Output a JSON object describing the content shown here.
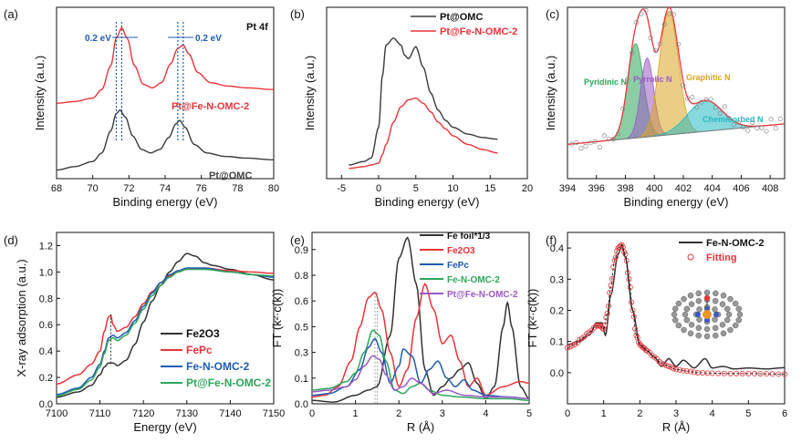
{
  "figure": {
    "panels": [
      {
        "panel_label": "(a)",
        "xlabel": "Binding energy (eV)",
        "ylabel": "Intensity (a.u.)",
        "annotation": "Pt 4f",
        "shift_left": "0.2 eV",
        "shift_right": "0.2 eV",
        "series_labels": [
          "Pt@Fe-N-OMC-2",
          "Pt@OMC"
        ]
      },
      {
        "panel_label": "(b)",
        "xlabel": "Binding energy (eV)",
        "ylabel": "Intensity (a.u.)",
        "legend": [
          "Pt@OMC",
          "Pt@Fe-N-OMC-2"
        ]
      },
      {
        "panel_label": "(c)",
        "xlabel": "Binding energy (eV)",
        "ylabel": "Intensity (a.u.)",
        "peak_labels": [
          "Pyridinic N",
          "Pyrrolic N",
          "Graphitic N",
          "Chemisorbed N"
        ]
      },
      {
        "panel_label": "(d)",
        "xlabel": "Energy (eV)",
        "ylabel": "X-ray adsorption (a.u.)",
        "legend": [
          "Fe2O3",
          "FePc",
          "Fe-N-OMC-2",
          "Pt@Fe-N-OMC-2"
        ]
      },
      {
        "panel_label": "(e)",
        "xlabel": "R (Å)",
        "ylabel": "FT (k²·c(k))",
        "legend": [
          "Fe foil*1/3",
          "Fe2O3",
          "FePc",
          "Fe-N-OMC-2",
          "Pt@Fe-N-OMC-2"
        ]
      },
      {
        "panel_label": "(f)",
        "xlabel": "R (Å)",
        "ylabel": "FT (k²·c(k))",
        "legend": [
          "Fe-N-OMC-2",
          "Fitting"
        ]
      }
    ]
  },
  "chart_data": [
    {
      "type": "line",
      "panel": "(a)",
      "xlabel": "Binding energy (eV)",
      "ylabel": "Intensity (a.u.)",
      "xlim": [
        68,
        80
      ],
      "xticks": [
        68,
        70,
        72,
        74,
        76,
        78,
        80
      ],
      "yticks": [],
      "series": [
        {
          "name": "Pt@Fe-N-OMC-2",
          "color": "#e8353a",
          "x": [
            68,
            69,
            70,
            70.5,
            71,
            71.3,
            71.6,
            71.9,
            72.3,
            72.8,
            73.3,
            73.8,
            74.3,
            74.7,
            75.0,
            75.3,
            75.8,
            76.5,
            77.5,
            78.5,
            80
          ],
          "y": [
            0.44,
            0.45,
            0.47,
            0.52,
            0.66,
            0.82,
            0.88,
            0.82,
            0.66,
            0.55,
            0.53,
            0.56,
            0.67,
            0.76,
            0.78,
            0.73,
            0.62,
            0.56,
            0.54,
            0.53,
            0.52
          ]
        },
        {
          "name": "Pt@OMC",
          "color": "#3a3a3a",
          "x": [
            68,
            69,
            70,
            70.5,
            71,
            71.3,
            71.5,
            71.8,
            72.2,
            72.7,
            73.2,
            73.7,
            74.2,
            74.6,
            74.8,
            75.1,
            75.6,
            76.3,
            77.3,
            78.5,
            80
          ],
          "y": [
            0.05,
            0.07,
            0.1,
            0.15,
            0.28,
            0.38,
            0.4,
            0.36,
            0.25,
            0.17,
            0.15,
            0.17,
            0.24,
            0.32,
            0.34,
            0.3,
            0.2,
            0.15,
            0.13,
            0.12,
            0.11
          ]
        }
      ]
    },
    {
      "type": "line",
      "panel": "(b)",
      "xlabel": "Binding energy (eV)",
      "ylabel": "Intensity (a.u.)",
      "xlim": [
        -7,
        20
      ],
      "xticks": [
        -5,
        0,
        5,
        10,
        15,
        20
      ],
      "yticks": [],
      "series": [
        {
          "name": "Pt@OMC",
          "color": "#3a3a3a",
          "x": [
            -4,
            -2,
            -1,
            0,
            0.5,
            1,
            2,
            3,
            3.5,
            4,
            5,
            6,
            7,
            8,
            9,
            10,
            12,
            14,
            16
          ],
          "y": [
            0.08,
            0.1,
            0.12,
            0.3,
            0.6,
            0.78,
            0.82,
            0.78,
            0.72,
            0.7,
            0.77,
            0.65,
            0.5,
            0.4,
            0.34,
            0.3,
            0.26,
            0.24,
            0.23
          ]
        },
        {
          "name": "Pt@Fe-N-OMC-2",
          "color": "#e8353a",
          "x": [
            -4,
            -2,
            -1,
            0,
            0.5,
            1,
            2,
            3,
            4,
            5,
            6,
            7,
            8,
            9,
            10,
            12,
            14,
            16
          ],
          "y": [
            0.06,
            0.07,
            0.08,
            0.09,
            0.14,
            0.2,
            0.33,
            0.42,
            0.46,
            0.47,
            0.44,
            0.39,
            0.33,
            0.29,
            0.25,
            0.2,
            0.17,
            0.15
          ]
        }
      ]
    },
    {
      "type": "area",
      "panel": "(c)",
      "xlabel": "Binding energy (eV)",
      "ylabel": "Intensity (a.u.)",
      "xlim": [
        394,
        409
      ],
      "xticks": [
        394,
        396,
        398,
        400,
        402,
        404,
        406,
        408
      ],
      "yticks": [],
      "series": [
        {
          "name": "Pyridinic N",
          "color": "#2ea65a",
          "center": 398.7,
          "height": 0.55,
          "width": 0.55
        },
        {
          "name": "Pyrrolic N",
          "color": "#9b59c6",
          "center": 399.5,
          "height": 0.46,
          "width": 0.45
        },
        {
          "name": "Graphitic N",
          "color": "#d9a520",
          "center": 401.0,
          "height": 0.72,
          "width": 0.65
        },
        {
          "name": "Chemisorbed N",
          "color": "#25b9c2",
          "center": 403.5,
          "height": 0.18,
          "width": 1.2
        }
      ]
    },
    {
      "type": "line",
      "panel": "(d)",
      "xlabel": "Energy (eV)",
      "ylabel": "X-ray adsorption (a.u.)",
      "xlim": [
        7100,
        7150
      ],
      "ylim": [
        0.0,
        1.3
      ],
      "xticks": [
        7100,
        7110,
        7120,
        7130,
        7140,
        7150
      ],
      "yticks": [
        0.0,
        0.2,
        0.4,
        0.6,
        0.8,
        1.0,
        1.2
      ],
      "series": [
        {
          "name": "Fe2O3",
          "color": "#333333",
          "x": [
            7100,
            7105,
            7108,
            7110,
            7111,
            7112,
            7113,
            7114,
            7116,
            7118,
            7120,
            7122,
            7124,
            7126,
            7128,
            7130,
            7132,
            7134,
            7136,
            7140,
            7145,
            7150
          ],
          "y": [
            0.05,
            0.09,
            0.14,
            0.22,
            0.28,
            0.31,
            0.31,
            0.29,
            0.33,
            0.45,
            0.62,
            0.78,
            0.9,
            1.0,
            1.08,
            1.14,
            1.12,
            1.07,
            1.05,
            1.02,
            0.98,
            0.94
          ]
        },
        {
          "name": "FePc",
          "color": "#e8353a",
          "x": [
            7100,
            7105,
            7108,
            7110,
            7111,
            7112,
            7112.5,
            7113,
            7114,
            7116,
            7118,
            7120,
            7122,
            7124,
            7126,
            7128,
            7130,
            7134,
            7140,
            7145,
            7150
          ],
          "y": [
            0.15,
            0.22,
            0.3,
            0.4,
            0.55,
            0.66,
            0.67,
            0.6,
            0.55,
            0.58,
            0.66,
            0.76,
            0.85,
            0.92,
            0.97,
            1.0,
            1.02,
            1.03,
            1.01,
            1.0,
            0.99
          ]
        },
        {
          "name": "Fe-N-OMC-2",
          "color": "#1f5bb5",
          "x": [
            7100,
            7105,
            7108,
            7110,
            7111,
            7112,
            7113,
            7114,
            7116,
            7118,
            7120,
            7122,
            7124,
            7126,
            7128,
            7130,
            7134,
            7140,
            7145,
            7150
          ],
          "y": [
            0.07,
            0.12,
            0.2,
            0.3,
            0.4,
            0.5,
            0.52,
            0.5,
            0.54,
            0.63,
            0.74,
            0.84,
            0.92,
            0.98,
            1.01,
            1.03,
            1.03,
            1.0,
            0.98,
            0.96
          ]
        },
        {
          "name": "Pt@Fe-N-OMC-2",
          "color": "#2ea65a",
          "x": [
            7100,
            7105,
            7108,
            7110,
            7111,
            7112,
            7113,
            7114,
            7116,
            7118,
            7120,
            7122,
            7124,
            7126,
            7128,
            7130,
            7134,
            7140,
            7145,
            7150
          ],
          "y": [
            0.06,
            0.11,
            0.18,
            0.28,
            0.38,
            0.48,
            0.5,
            0.48,
            0.52,
            0.61,
            0.72,
            0.82,
            0.9,
            0.96,
            1.0,
            1.02,
            1.02,
            1.0,
            0.98,
            0.97
          ]
        }
      ]
    },
    {
      "type": "line",
      "panel": "(e)",
      "xlabel": "R (Å)",
      "ylabel": "FT (k²·c(k))",
      "xlim": [
        0,
        5
      ],
      "ylim": [
        0.0,
        1.0
      ],
      "xticks": [
        0,
        1,
        2,
        3,
        4,
        5
      ],
      "yticks": [
        0.0,
        0.15,
        0.3,
        0.45,
        0.6,
        0.75,
        0.9
      ],
      "series": [
        {
          "name": "Fe foil*1/3",
          "color": "#333333",
          "x": [
            0,
            0.5,
            1,
            1.3,
            1.5,
            1.8,
            2.0,
            2.2,
            2.4,
            2.6,
            2.8,
            3.0,
            3.2,
            3.4,
            3.6,
            3.8,
            4.0,
            4.2,
            4.4,
            4.5,
            4.6,
            4.8,
            5
          ],
          "y": [
            0.02,
            0.01,
            0.05,
            0.08,
            0.1,
            0.4,
            0.85,
            0.97,
            0.7,
            0.2,
            0.05,
            0.1,
            0.15,
            0.2,
            0.24,
            0.12,
            0.03,
            0.1,
            0.45,
            0.59,
            0.45,
            0.1,
            0.03
          ]
        },
        {
          "name": "Fe2O3",
          "color": "#e8353a",
          "x": [
            0,
            0.3,
            0.6,
            0.9,
            1.1,
            1.3,
            1.45,
            1.6,
            1.8,
            2.0,
            2.2,
            2.4,
            2.6,
            2.8,
            3.0,
            3.2,
            3.4,
            3.6,
            3.8,
            4.0,
            4.4,
            4.8,
            5
          ],
          "y": [
            0.04,
            0.05,
            0.1,
            0.25,
            0.45,
            0.62,
            0.65,
            0.55,
            0.3,
            0.1,
            0.2,
            0.5,
            0.7,
            0.55,
            0.35,
            0.4,
            0.25,
            0.1,
            0.15,
            0.05,
            0.1,
            0.13,
            0.12
          ]
        },
        {
          "name": "FePc",
          "color": "#1f5bb5",
          "x": [
            0,
            0.4,
            0.8,
            1.1,
            1.3,
            1.45,
            1.6,
            1.8,
            2.0,
            2.1,
            2.3,
            2.5,
            2.7,
            2.9,
            3.1,
            3.3,
            3.5,
            3.7,
            4.0,
            4.5,
            5
          ],
          "y": [
            0.05,
            0.06,
            0.1,
            0.2,
            0.33,
            0.38,
            0.3,
            0.12,
            0.22,
            0.32,
            0.28,
            0.12,
            0.2,
            0.25,
            0.15,
            0.1,
            0.14,
            0.08,
            0.05,
            0.04,
            0.03
          ]
        },
        {
          "name": "Fe-N-OMC-2",
          "color": "#2ea65a",
          "x": [
            0,
            0.4,
            0.8,
            1.0,
            1.2,
            1.4,
            1.55,
            1.7,
            1.9,
            2.1,
            2.3,
            2.5,
            2.7,
            3.0,
            3.4,
            4.0,
            4.5,
            5
          ],
          "y": [
            0.08,
            0.09,
            0.13,
            0.18,
            0.3,
            0.43,
            0.4,
            0.25,
            0.08,
            0.06,
            0.1,
            0.12,
            0.08,
            0.05,
            0.04,
            0.03,
            0.03,
            0.02
          ]
        },
        {
          "name": "Pt@Fe-N-OMC-2",
          "color": "#9b59c6",
          "x": [
            0,
            0.4,
            0.8,
            1.0,
            1.2,
            1.4,
            1.55,
            1.7,
            1.9,
            2.1,
            2.3,
            2.5,
            2.8,
            3.1,
            3.5,
            4.0,
            4.5,
            5
          ],
          "y": [
            0.07,
            0.08,
            0.1,
            0.14,
            0.22,
            0.28,
            0.26,
            0.17,
            0.08,
            0.1,
            0.15,
            0.12,
            0.06,
            0.08,
            0.05,
            0.04,
            0.04,
            0.03
          ]
        }
      ]
    },
    {
      "type": "line",
      "panel": "(f)",
      "xlabel": "R (Å)",
      "ylabel": "FT (k²·c(k))",
      "xlim": [
        0,
        6
      ],
      "ylim": [
        -0.1,
        0.45
      ],
      "xticks": [
        0,
        1,
        2,
        3,
        4,
        5,
        6
      ],
      "yticks": [
        0.0,
        0.1,
        0.2,
        0.3,
        0.4
      ],
      "series": [
        {
          "name": "Fe-N-OMC-2",
          "color": "#333333",
          "x": [
            0,
            0.3,
            0.6,
            0.8,
            0.95,
            1.05,
            1.2,
            1.4,
            1.5,
            1.6,
            1.8,
            2.0,
            2.2,
            2.4,
            2.6,
            2.8,
            3.0,
            3.2,
            3.5,
            3.8,
            4.0,
            4.3,
            4.6,
            5.0,
            5.5,
            6
          ],
          "y": [
            0.09,
            0.1,
            0.12,
            0.16,
            0.16,
            0.12,
            0.25,
            0.38,
            0.41,
            0.37,
            0.2,
            0.09,
            0.07,
            0.05,
            0.02,
            0.045,
            0.02,
            0.04,
            0.015,
            0.045,
            0.015,
            0.02,
            0.012,
            0.015,
            0.012,
            0.016
          ]
        },
        {
          "name": "Fitting",
          "color": "#e8353a",
          "x": [
            0,
            0.2,
            0.4,
            0.6,
            0.8,
            0.9,
            1.0,
            1.1,
            1.2,
            1.3,
            1.4,
            1.5,
            1.6,
            1.7,
            1.8,
            1.9,
            2.0,
            2.1,
            2.2,
            2.4,
            2.6,
            2.8,
            3.0,
            3.3,
            3.6,
            4.0,
            4.5,
            5.0,
            5.5,
            6
          ],
          "y": [
            0.08,
            0.09,
            0.11,
            0.13,
            0.15,
            0.15,
            0.14,
            0.19,
            0.28,
            0.36,
            0.4,
            0.41,
            0.38,
            0.3,
            0.2,
            0.12,
            0.09,
            0.08,
            0.07,
            0.05,
            0.03,
            0.02,
            0.01,
            0.005,
            0.0,
            -0.002,
            -0.003,
            -0.003,
            -0.004,
            -0.005
          ]
        }
      ]
    }
  ]
}
